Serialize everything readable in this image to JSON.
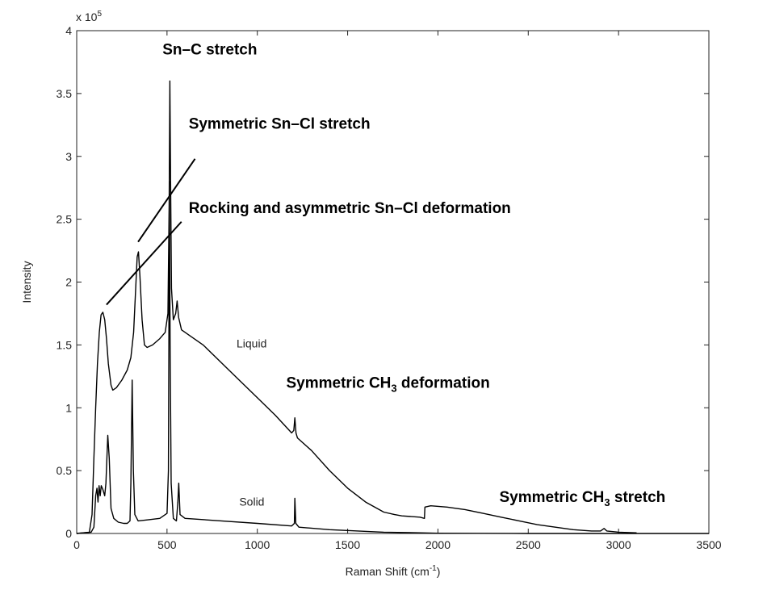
{
  "chart_data": {
    "type": "line",
    "xlabel": "Raman Shift (cm",
    "xlabel_sup": "-1",
    "xlabel_tail": ")",
    "ylabel": "Intensity",
    "y_multiplier": "x 10",
    "y_multiplier_exp": "5",
    "xlim": [
      0,
      3500
    ],
    "ylim": [
      0,
      4
    ],
    "x_ticks": [
      0,
      500,
      1000,
      1500,
      2000,
      2500,
      3000,
      3500
    ],
    "y_ticks": [
      0,
      0.5,
      1,
      1.5,
      2,
      2.5,
      3,
      3.5,
      4
    ],
    "x_tick_labels": [
      "0",
      "500",
      "1000",
      "1500",
      "2000",
      "2500",
      "3000",
      "3500"
    ],
    "y_tick_labels": [
      "0",
      "0.5",
      "1",
      "1.5",
      "2",
      "2.5",
      "3",
      "3.5",
      "4"
    ],
    "grid": false,
    "series": [
      {
        "name": "Liquid",
        "color": "#000000",
        "points": [
          [
            0,
            0
          ],
          [
            70,
            0.01
          ],
          [
            85,
            0.15
          ],
          [
            95,
            0.6
          ],
          [
            105,
            1.0
          ],
          [
            115,
            1.35
          ],
          [
            125,
            1.6
          ],
          [
            135,
            1.74
          ],
          [
            145,
            1.76
          ],
          [
            155,
            1.7
          ],
          [
            165,
            1.55
          ],
          [
            175,
            1.35
          ],
          [
            190,
            1.18
          ],
          [
            200,
            1.14
          ],
          [
            220,
            1.16
          ],
          [
            250,
            1.22
          ],
          [
            280,
            1.3
          ],
          [
            300,
            1.4
          ],
          [
            315,
            1.6
          ],
          [
            325,
            1.9
          ],
          [
            335,
            2.2
          ],
          [
            342,
            2.24
          ],
          [
            350,
            2.05
          ],
          [
            362,
            1.7
          ],
          [
            375,
            1.5
          ],
          [
            390,
            1.48
          ],
          [
            420,
            1.5
          ],
          [
            460,
            1.55
          ],
          [
            490,
            1.6
          ],
          [
            505,
            1.75
          ],
          [
            512,
            2.6
          ],
          [
            516,
            3.6
          ],
          [
            520,
            2.8
          ],
          [
            525,
            1.95
          ],
          [
            535,
            1.7
          ],
          [
            548,
            1.75
          ],
          [
            556,
            1.85
          ],
          [
            564,
            1.72
          ],
          [
            580,
            1.62
          ],
          [
            620,
            1.58
          ],
          [
            700,
            1.5
          ],
          [
            800,
            1.36
          ],
          [
            900,
            1.22
          ],
          [
            1000,
            1.08
          ],
          [
            1100,
            0.94
          ],
          [
            1190,
            0.8
          ],
          [
            1202,
            0.82
          ],
          [
            1208,
            0.92
          ],
          [
            1214,
            0.8
          ],
          [
            1222,
            0.76
          ],
          [
            1300,
            0.66
          ],
          [
            1400,
            0.5
          ],
          [
            1500,
            0.36
          ],
          [
            1600,
            0.25
          ],
          [
            1700,
            0.17
          ],
          [
            1760,
            0.15
          ],
          [
            1800,
            0.14
          ],
          [
            1900,
            0.13
          ],
          [
            1925,
            0.12
          ],
          [
            1928,
            0.21
          ],
          [
            1960,
            0.22
          ],
          [
            2050,
            0.21
          ],
          [
            2150,
            0.19
          ],
          [
            2250,
            0.16
          ],
          [
            2350,
            0.13
          ],
          [
            2450,
            0.1
          ],
          [
            2550,
            0.07
          ],
          [
            2650,
            0.05
          ],
          [
            2750,
            0.03
          ],
          [
            2850,
            0.02
          ],
          [
            2900,
            0.02
          ],
          [
            2920,
            0.04
          ],
          [
            2935,
            0.02
          ],
          [
            3000,
            0.01
          ],
          [
            3100,
            0.005
          ]
        ]
      },
      {
        "name": "Solid",
        "color": "#000000",
        "points": [
          [
            0,
            0
          ],
          [
            80,
            0.01
          ],
          [
            95,
            0.05
          ],
          [
            105,
            0.3
          ],
          [
            112,
            0.36
          ],
          [
            118,
            0.25
          ],
          [
            124,
            0.38
          ],
          [
            130,
            0.3
          ],
          [
            136,
            0.38
          ],
          [
            145,
            0.35
          ],
          [
            155,
            0.3
          ],
          [
            162,
            0.4
          ],
          [
            172,
            0.78
          ],
          [
            180,
            0.6
          ],
          [
            190,
            0.2
          ],
          [
            205,
            0.12
          ],
          [
            230,
            0.09
          ],
          [
            260,
            0.08
          ],
          [
            280,
            0.08
          ],
          [
            295,
            0.1
          ],
          [
            300,
            0.4
          ],
          [
            307,
            1.22
          ],
          [
            314,
            0.5
          ],
          [
            322,
            0.15
          ],
          [
            340,
            0.1
          ],
          [
            400,
            0.11
          ],
          [
            460,
            0.12
          ],
          [
            500,
            0.16
          ],
          [
            508,
            0.5
          ],
          [
            513,
            2.8
          ],
          [
            517,
            1.5
          ],
          [
            523,
            0.4
          ],
          [
            535,
            0.12
          ],
          [
            552,
            0.1
          ],
          [
            560,
            0.25
          ],
          [
            565,
            0.4
          ],
          [
            572,
            0.15
          ],
          [
            600,
            0.12
          ],
          [
            800,
            0.1
          ],
          [
            1000,
            0.08
          ],
          [
            1190,
            0.06
          ],
          [
            1205,
            0.08
          ],
          [
            1208,
            0.28
          ],
          [
            1213,
            0.08
          ],
          [
            1230,
            0.05
          ],
          [
            1400,
            0.03
          ],
          [
            1700,
            0.01
          ],
          [
            1900,
            0.005
          ],
          [
            2000,
            0.002
          ],
          [
            2500,
            0
          ],
          [
            3500,
            0
          ]
        ]
      }
    ],
    "series_labels": [
      {
        "text": "Liquid",
        "x": 885,
        "y": 1.48
      },
      {
        "text": "Solid",
        "x": 900,
        "y": 0.22
      }
    ],
    "annotations": [
      {
        "text": "Sn–C stretch",
        "x": 475,
        "y": 3.81
      },
      {
        "text": "Symmetric Sn–Cl stretch",
        "x": 620,
        "y": 3.22
      },
      {
        "text": "Rocking and asymmetric Sn–Cl deformation",
        "x": 620,
        "y": 2.55
      },
      {
        "text": "Symmetric CH",
        "sub": "3",
        "tail": " deformation",
        "x": 1160,
        "y": 1.16
      },
      {
        "text": "Symmetric CH",
        "sub": "3",
        "tail": " stretch",
        "x": 2340,
        "y": 0.25
      }
    ],
    "leader_lines": [
      {
        "from": [
          340,
          2.32
        ],
        "to": [
          655,
          2.98
        ]
      },
      {
        "from": [
          165,
          1.82
        ],
        "to": [
          580,
          2.48
        ]
      }
    ]
  }
}
